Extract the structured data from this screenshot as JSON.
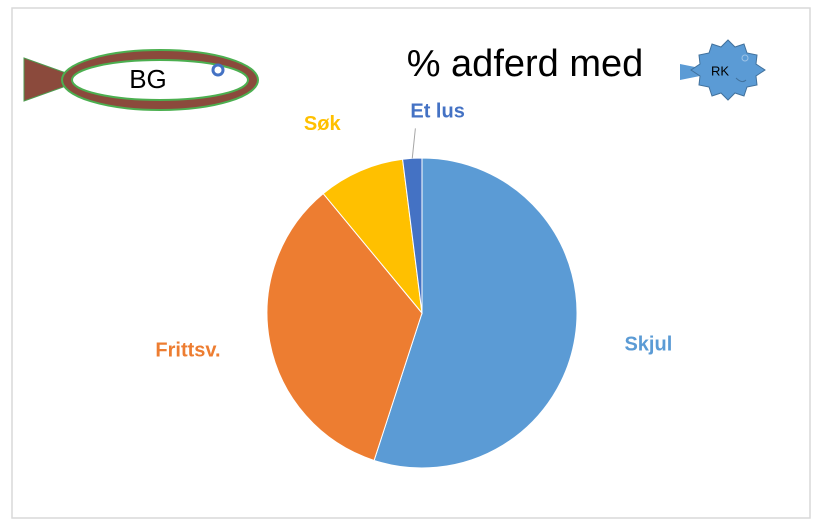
{
  "chart_data": {
    "type": "pie",
    "title": "% adferd med",
    "annotations": [
      "BG",
      "RK"
    ],
    "categories": [
      "Skjul",
      "Frittsv.",
      "Søk",
      "Et lus"
    ],
    "values": [
      55,
      34,
      9,
      2
    ],
    "colors": [
      "#5b9bd5",
      "#ed7d31",
      "#ffc000",
      "#4472c4"
    ]
  }
}
